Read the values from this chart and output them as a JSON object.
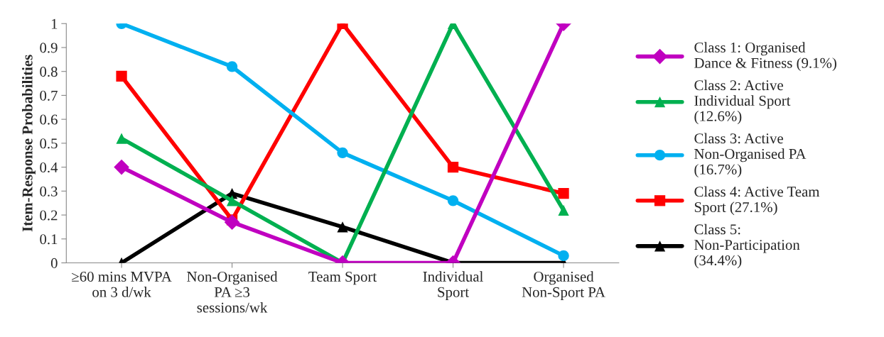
{
  "chart_data": {
    "type": "line",
    "ylabel": "Item-Response Probabilities",
    "categories": [
      "≥60 mins MVPA on 3 d/wk",
      "Non-Organised PA ≥3 sessions/wk",
      "Team Sport",
      "Individual Sport",
      "Organised Non-Sport PA"
    ],
    "ylim": [
      0,
      1
    ],
    "yticks": [
      0,
      0.1,
      0.2,
      0.3,
      0.4,
      0.5,
      0.6,
      0.7,
      0.8,
      0.9,
      1
    ],
    "grid": false,
    "legend": "right",
    "line_style": "solid",
    "series": [
      {
        "name": "Class 1: Organised Dance & Fitness (9.1%)",
        "color": "#c000c0",
        "marker": "diamond",
        "values": [
          0.4,
          0.17,
          0,
          0,
          1
        ]
      },
      {
        "name": "Class 2: Active Individual Sport (12.6%)",
        "color": "#00b050",
        "marker": "triangle",
        "values": [
          0.52,
          0.26,
          0,
          1,
          0.22
        ]
      },
      {
        "name": "Class 3: Active Non-Organised PA (16.7%)",
        "color": "#00b0f0",
        "marker": "circle",
        "values": [
          1,
          0.82,
          0.46,
          0.26,
          0.03
        ]
      },
      {
        "name": "Class 4: Active Team Sport (27.1%)",
        "color": "#ff0000",
        "marker": "square",
        "values": [
          0.78,
          0.18,
          1,
          0.4,
          0.29
        ]
      },
      {
        "name": "Class 5: Non-Participation (34.4%)",
        "color": "#000000",
        "marker": "triangle",
        "values": [
          0,
          0.29,
          0.15,
          0,
          0
        ]
      }
    ]
  }
}
